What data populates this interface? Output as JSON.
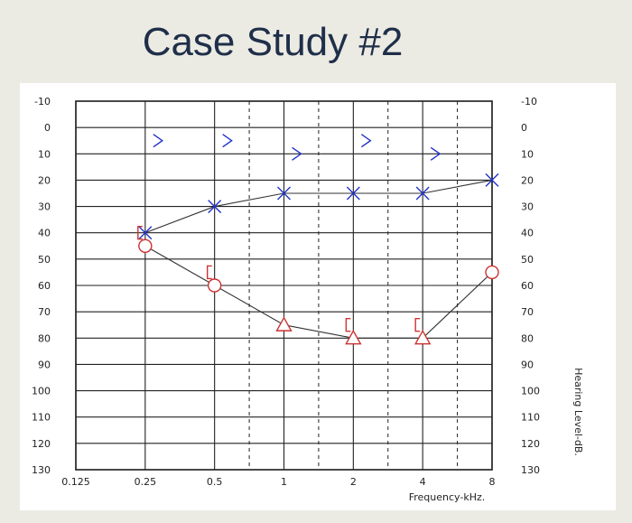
{
  "slide": {
    "title": "Case Study #2"
  },
  "chart_data": {
    "type": "scatter",
    "title": "",
    "xlabel": "Frequency-kHz.",
    "ylabel": "Hearing Level-dB.",
    "x_scale": "log2",
    "x_ticks": [
      "0.125",
      "0.25",
      "0.5",
      "1",
      "2",
      "4",
      "8"
    ],
    "y_ticks": [
      "-10",
      "0",
      "10",
      "20",
      "30",
      "40",
      "50",
      "60",
      "70",
      "80",
      "90",
      "100",
      "110",
      "120",
      "130"
    ],
    "ylim": [
      -10,
      130
    ],
    "y_inverted": true,
    "grid": true,
    "colors": {
      "left_ear": "#2233cc",
      "right_ear": "#cc3333"
    },
    "series": [
      {
        "symbol": "cross",
        "color": "#2233cc",
        "connected": true,
        "points": [
          [
            0.25,
            40
          ],
          [
            0.5,
            30
          ],
          [
            1,
            25
          ],
          [
            2,
            25
          ],
          [
            4,
            25
          ],
          [
            8,
            20
          ]
        ]
      },
      {
        "symbol": "greater-than",
        "color": "#2233cc",
        "connected": false,
        "points": [
          [
            0.25,
            5
          ],
          [
            0.5,
            5
          ],
          [
            1,
            10
          ],
          [
            2,
            5
          ],
          [
            4,
            10
          ]
        ]
      },
      {
        "symbol": "circle",
        "color": "#cc3333",
        "connected": true,
        "points": [
          [
            0.25,
            45
          ],
          [
            0.5,
            60
          ],
          [
            8,
            55
          ]
        ]
      },
      {
        "symbol": "triangle",
        "color": "#cc3333",
        "connected": true,
        "points": [
          [
            1,
            75
          ],
          [
            2,
            80
          ],
          [
            4,
            80
          ]
        ]
      },
      {
        "symbol": "bracket",
        "color": "#cc3333",
        "connected": false,
        "points": [
          [
            0.25,
            40
          ],
          [
            0.5,
            55
          ],
          [
            2,
            75
          ],
          [
            4,
            75
          ]
        ]
      }
    ],
    "connections": [
      [
        0.25,
        45
      ],
      [
        0.5,
        60
      ],
      [
        1,
        75
      ],
      [
        2,
        80
      ],
      [
        4,
        80
      ],
      [
        8,
        55
      ]
    ]
  }
}
